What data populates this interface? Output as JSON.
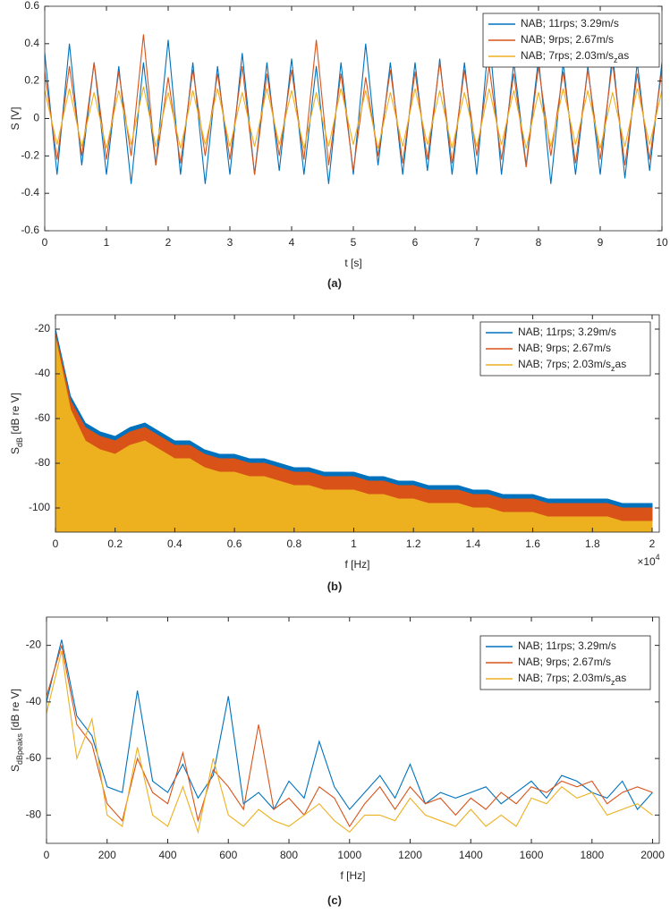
{
  "chart_data": [
    {
      "type": "line",
      "caption": "(a)",
      "xlabel": "t [s]",
      "ylabel": "S [V]",
      "legend": "upper right",
      "xlim": [
        0,
        10
      ],
      "ylim": [
        -0.6,
        0.6
      ],
      "xticks": [
        0,
        1,
        2,
        3,
        4,
        5,
        6,
        7,
        8,
        9,
        10
      ],
      "yticks": [
        -0.6,
        -0.4,
        -0.2,
        0,
        0.2,
        0.4,
        0.6
      ],
      "x": [
        0,
        0.2,
        0.4,
        0.6,
        0.8,
        1,
        1.2,
        1.4,
        1.6,
        1.8,
        2,
        2.2,
        2.4,
        2.6,
        2.8,
        3,
        3.2,
        3.4,
        3.6,
        3.8,
        4,
        4.2,
        4.4,
        4.6,
        4.8,
        5,
        5.2,
        5.4,
        5.6,
        5.8,
        6,
        6.2,
        6.4,
        6.6,
        6.8,
        7,
        7.2,
        7.4,
        7.6,
        7.8,
        8,
        8.2,
        8.4,
        8.6,
        8.8,
        9,
        9.2,
        9.4,
        9.6,
        9.8,
        10
      ],
      "series": [
        {
          "name": "NAB; 11rps; 3.29m/s",
          "color": "#0072bd",
          "values": [
            0.35,
            -0.3,
            0.4,
            -0.25,
            0.3,
            -0.3,
            0.28,
            -0.35,
            0.3,
            -0.25,
            0.42,
            -0.3,
            0.3,
            -0.35,
            0.28,
            -0.3,
            0.35,
            -0.3,
            0.3,
            -0.28,
            0.32,
            -0.3,
            0.28,
            -0.35,
            0.3,
            -0.3,
            0.4,
            -0.25,
            0.3,
            -0.3,
            0.3,
            -0.28,
            0.32,
            -0.3,
            0.3,
            -0.3,
            0.45,
            -0.3,
            0.3,
            -0.25,
            0.32,
            -0.35,
            0.3,
            -0.3,
            0.28,
            -0.3,
            0.35,
            -0.32,
            0.3,
            -0.28,
            0.3
          ]
        },
        {
          "name": "NAB; 9rps; 2.67m/s",
          "color": "#d95319",
          "values": [
            0.25,
            -0.22,
            0.28,
            -0.2,
            0.3,
            -0.22,
            0.25,
            -0.2,
            0.45,
            -0.25,
            0.22,
            -0.24,
            0.26,
            -0.2,
            0.24,
            -0.22,
            0.28,
            -0.3,
            0.24,
            -0.2,
            0.26,
            -0.22,
            0.42,
            -0.25,
            0.24,
            -0.28,
            0.22,
            -0.2,
            0.26,
            -0.24,
            0.25,
            -0.22,
            0.3,
            -0.24,
            0.26,
            -0.2,
            0.28,
            -0.22,
            0.24,
            -0.26,
            0.28,
            -0.2,
            0.25,
            -0.24,
            0.26,
            -0.22,
            0.3,
            -0.25,
            0.24,
            -0.22,
            0.26
          ]
        },
        {
          "name": "NAB; 7rps; 2.03m/s_{z}as",
          "color": "#edb120",
          "values": [
            0.15,
            -0.14,
            0.16,
            -0.15,
            0.14,
            -0.16,
            0.15,
            -0.14,
            0.17,
            -0.15,
            0.14,
            -0.16,
            0.15,
            -0.14,
            0.16,
            -0.15,
            0.14,
            -0.15,
            0.16,
            -0.14,
            0.15,
            -0.16,
            0.14,
            -0.15,
            0.16,
            -0.14,
            0.15,
            -0.16,
            0.14,
            -0.15,
            0.16,
            -0.14,
            0.15,
            -0.16,
            0.14,
            -0.15,
            0.16,
            -0.14,
            0.15,
            -0.16,
            0.14,
            -0.15,
            0.16,
            -0.14,
            0.15,
            -0.16,
            0.14,
            -0.15,
            0.16,
            -0.14,
            0.15
          ]
        }
      ]
    },
    {
      "type": "area",
      "caption": "(b)",
      "xlabel": "f [Hz]",
      "xexponent": "×10^{4}",
      "ylabel": "S_{dB} [dB re V]",
      "legend": "upper right",
      "xlim": [
        0,
        2.024
      ],
      "ylim": [
        -110.8,
        -13.6
      ],
      "xticks": [
        0,
        0.2,
        0.4,
        0.6,
        0.8,
        1,
        1.2,
        1.4,
        1.6,
        1.8,
        2
      ],
      "yticks": [
        -100,
        -80,
        -60,
        -40,
        -20
      ],
      "x": [
        0,
        0.05,
        0.1,
        0.15,
        0.2,
        0.25,
        0.3,
        0.35,
        0.4,
        0.45,
        0.5,
        0.55,
        0.6,
        0.65,
        0.7,
        0.75,
        0.8,
        0.85,
        0.9,
        0.95,
        1,
        1.05,
        1.1,
        1.15,
        1.2,
        1.25,
        1.3,
        1.35,
        1.4,
        1.45,
        1.5,
        1.55,
        1.6,
        1.65,
        1.7,
        1.75,
        1.8,
        1.85,
        1.9,
        1.95,
        2
      ],
      "series": [
        {
          "name": "NAB; 11rps; 3.29m/s",
          "color": "#0072bd",
          "values": [
            -20,
            -50,
            -62,
            -66,
            -68,
            -64,
            -62,
            -66,
            -70,
            -70,
            -74,
            -76,
            -76,
            -78,
            -78,
            -80,
            -82,
            -82,
            -84,
            -84,
            -84,
            -86,
            -86,
            -88,
            -88,
            -90,
            -90,
            -90,
            -92,
            -92,
            -94,
            -94,
            -94,
            -96,
            -96,
            -96,
            -96,
            -96,
            -98,
            -98,
            -98
          ]
        },
        {
          "name": "NAB; 9rps; 2.67m/s",
          "color": "#d95319",
          "values": [
            -22,
            -52,
            -64,
            -68,
            -70,
            -66,
            -64,
            -68,
            -72,
            -72,
            -76,
            -78,
            -78,
            -80,
            -80,
            -82,
            -84,
            -84,
            -86,
            -86,
            -86,
            -88,
            -88,
            -90,
            -90,
            -92,
            -92,
            -92,
            -94,
            -94,
            -96,
            -96,
            -96,
            -98,
            -98,
            -98,
            -98,
            -98,
            -100,
            -100,
            -100
          ]
        },
        {
          "name": "NAB; 7rps; 2.03m/s_{z}as",
          "color": "#edb120",
          "values": [
            -24,
            -56,
            -70,
            -74,
            -76,
            -72,
            -70,
            -74,
            -78,
            -78,
            -82,
            -84,
            -84,
            -86,
            -86,
            -88,
            -90,
            -90,
            -92,
            -92,
            -92,
            -94,
            -94,
            -96,
            -96,
            -98,
            -98,
            -98,
            -100,
            -100,
            -102,
            -102,
            -102,
            -104,
            -104,
            -104,
            -104,
            -104,
            -106,
            -106,
            -106
          ]
        }
      ]
    },
    {
      "type": "line",
      "caption": "(c)",
      "xlabel": "f [Hz]",
      "ylabel": "S_{dBpeaks} [dB re V]",
      "legend": "upper right",
      "xlim": [
        0,
        2022
      ],
      "ylim": [
        -90,
        -10
      ],
      "xticks": [
        0,
        200,
        400,
        600,
        800,
        1000,
        1200,
        1400,
        1600,
        1800,
        2000
      ],
      "yticks": [
        -80,
        -60,
        -40,
        -20
      ],
      "x": [
        0,
        50,
        100,
        150,
        200,
        250,
        300,
        350,
        400,
        450,
        500,
        550,
        600,
        650,
        700,
        750,
        800,
        850,
        900,
        950,
        1000,
        1050,
        1100,
        1150,
        1200,
        1250,
        1300,
        1350,
        1400,
        1450,
        1500,
        1550,
        1600,
        1650,
        1700,
        1750,
        1800,
        1850,
        1900,
        1950,
        2000
      ],
      "series": [
        {
          "name": "NAB; 11rps; 3.29m/s",
          "color": "#0072bd",
          "values": [
            -40,
            -18,
            -45,
            -52,
            -70,
            -72,
            -36,
            -68,
            -72,
            -62,
            -74,
            -66,
            -38,
            -76,
            -72,
            -78,
            -68,
            -74,
            -54,
            -70,
            -78,
            -72,
            -66,
            -74,
            -62,
            -76,
            -72,
            -74,
            -72,
            -70,
            -76,
            -72,
            -68,
            -74,
            -66,
            -68,
            -72,
            -74,
            -68,
            -78,
            -72
          ]
        },
        {
          "name": "NAB; 9rps; 2.67m/s",
          "color": "#d95319",
          "values": [
            -38,
            -20,
            -48,
            -55,
            -76,
            -82,
            -60,
            -72,
            -76,
            -58,
            -82,
            -64,
            -70,
            -78,
            -48,
            -78,
            -74,
            -80,
            -70,
            -74,
            -84,
            -76,
            -70,
            -78,
            -70,
            -76,
            -74,
            -80,
            -74,
            -78,
            -72,
            -76,
            -70,
            -72,
            -68,
            -70,
            -68,
            -76,
            -72,
            -70,
            -72
          ]
        },
        {
          "name": "NAB; 7rps; 2.03m/s_{z}as",
          "color": "#edb120",
          "values": [
            -44,
            -22,
            -60,
            -46,
            -80,
            -84,
            -56,
            -80,
            -84,
            -70,
            -86,
            -60,
            -80,
            -84,
            -78,
            -82,
            -84,
            -80,
            -76,
            -82,
            -86,
            -80,
            -80,
            -82,
            -74,
            -80,
            -82,
            -84,
            -78,
            -84,
            -80,
            -84,
            -74,
            -76,
            -70,
            -74,
            -72,
            -80,
            -78,
            -76,
            -80
          ]
        }
      ]
    }
  ]
}
